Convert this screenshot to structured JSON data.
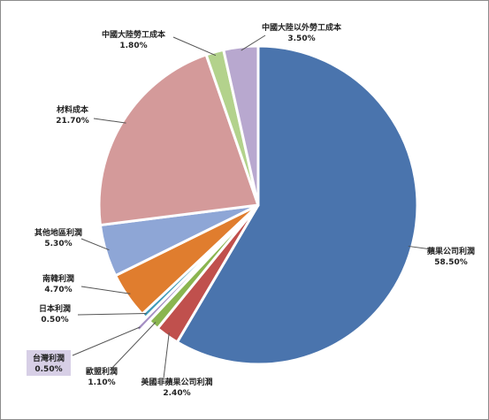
{
  "chart_data": {
    "type": "pie",
    "slices": [
      {
        "name": "蘋果公司利潤",
        "value": 58.5,
        "value_label": "58.50%",
        "color": "#4a74ad"
      },
      {
        "name": "美國非蘋果公司利潤",
        "value": 2.4,
        "value_label": "2.40%",
        "color": "#c0504d"
      },
      {
        "name": "歐盟利潤",
        "value": 1.1,
        "value_label": "1.10%",
        "color": "#8ab550"
      },
      {
        "name": "台灣利潤",
        "value": 0.5,
        "value_label": "0.50%",
        "color": "#a58fc4",
        "exploded": true
      },
      {
        "name": "日本利潤",
        "value": 0.5,
        "value_label": "0.50%",
        "color": "#3f9bb9"
      },
      {
        "name": "南韓利潤",
        "value": 4.7,
        "value_label": "4.70%",
        "color": "#e07d2e"
      },
      {
        "name": "其他地區利潤",
        "value": 5.3,
        "value_label": "5.30%",
        "color": "#8ea6d6"
      },
      {
        "name": "材料成本",
        "value": 21.7,
        "value_label": "21.70%",
        "color": "#d49a9a"
      },
      {
        "name": "中國大陸勞工成本",
        "value": 1.8,
        "value_label": "1.80%",
        "color": "#b3d28c"
      },
      {
        "name": "中國大陸以外勞工成本",
        "value": 3.5,
        "value_label": "3.50%",
        "color": "#b8a8cf"
      }
    ],
    "highlighted_label": "台灣利潤"
  }
}
